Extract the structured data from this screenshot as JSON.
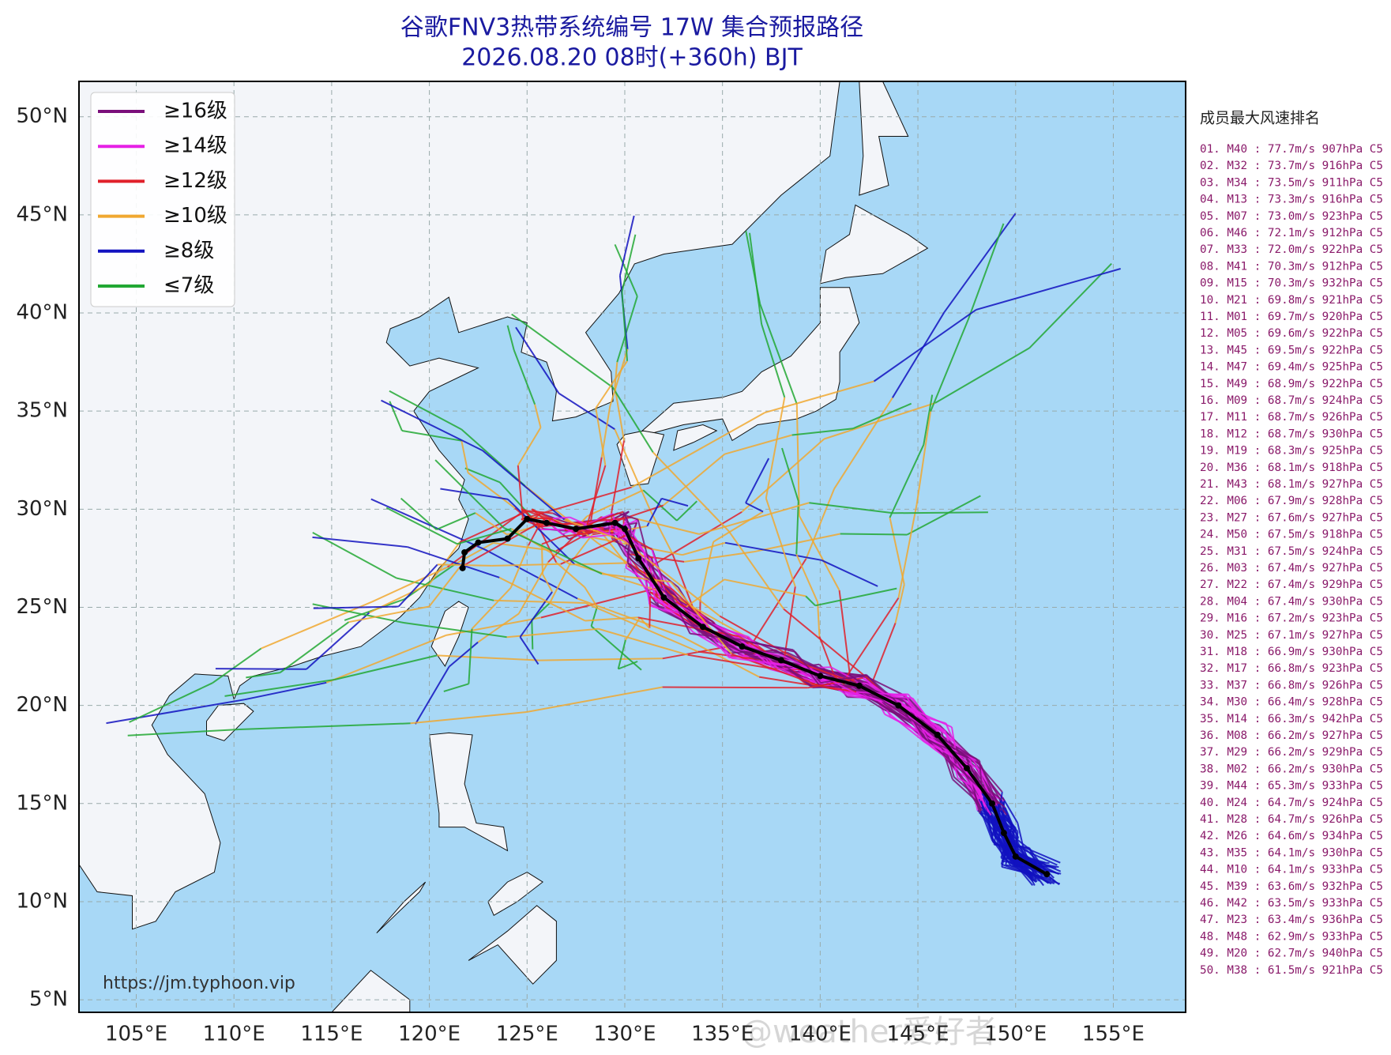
{
  "title": "谷歌FNV3热带系统编号 17W 集合预报路径",
  "subtitle": "2026.08.20 08时(+360h) BJT",
  "map": {
    "xlim": [
      102.07,
      158.7
    ],
    "ylim": [
      4.36,
      51.8
    ],
    "xticks": [
      {
        "value": 105,
        "label": "105°E"
      },
      {
        "value": 110,
        "label": "110°E"
      },
      {
        "value": 115,
        "label": "115°E"
      },
      {
        "value": 120,
        "label": "120°E"
      },
      {
        "value": 125,
        "label": "125°E"
      },
      {
        "value": 130,
        "label": "130°E"
      },
      {
        "value": 135,
        "label": "135°E"
      },
      {
        "value": 140,
        "label": "140°E"
      },
      {
        "value": 145,
        "label": "145°E"
      },
      {
        "value": 150,
        "label": "150°E"
      },
      {
        "value": 155,
        "label": "155°E"
      }
    ],
    "yticks": [
      {
        "value": 5,
        "label": "5°N"
      },
      {
        "value": 10,
        "label": "10°N"
      },
      {
        "value": 15,
        "label": "15°N"
      },
      {
        "value": 20,
        "label": "20°N"
      },
      {
        "value": 25,
        "label": "25°N"
      },
      {
        "value": 30,
        "label": "30°N"
      },
      {
        "value": 35,
        "label": "35°N"
      },
      {
        "value": 40,
        "label": "40°N"
      },
      {
        "value": 45,
        "label": "45°N"
      },
      {
        "value": 50,
        "label": "50°N"
      }
    ],
    "grid": true
  },
  "legend": [
    {
      "name": "≥16级",
      "color": "#7a0f7a"
    },
    {
      "name": "≥14级",
      "color": "#e620e6"
    },
    {
      "name": "≥12级",
      "color": "#e0202a"
    },
    {
      "name": "≥10级",
      "color": "#f0a830"
    },
    {
      "name": "≥8级",
      "color": "#1212c0"
    },
    {
      "name": "≤7级",
      "color": "#22a834"
    }
  ],
  "ranking": {
    "title": "成员最大风速排名",
    "items": [
      "01. M40 : 77.7m/s 907hPa C5",
      "02. M32 : 73.7m/s 916hPa C5",
      "03. M34 : 73.5m/s 911hPa C5",
      "04. M13 : 73.3m/s 916hPa C5",
      "05. M07 : 73.0m/s 923hPa C5",
      "06. M46 : 72.1m/s 912hPa C5",
      "07. M33 : 72.0m/s 922hPa C5",
      "08. M41 : 70.3m/s 912hPa C5",
      "09. M15 : 70.3m/s 932hPa C5",
      "10. M21 : 69.8m/s 921hPa C5",
      "11. M01 : 69.7m/s 920hPa C5",
      "12. M05 : 69.6m/s 922hPa C5",
      "13. M45 : 69.5m/s 922hPa C5",
      "14. M47 : 69.4m/s 925hPa C5",
      "15. M49 : 68.9m/s 922hPa C5",
      "16. M09 : 68.7m/s 924hPa C5",
      "17. M11 : 68.7m/s 926hPa C5",
      "18. M12 : 68.7m/s 930hPa C5",
      "19. M19 : 68.3m/s 925hPa C5",
      "20. M36 : 68.1m/s 918hPa C5",
      "21. M43 : 68.1m/s 927hPa C5",
      "22. M06 : 67.9m/s 928hPa C5",
      "23. M27 : 67.6m/s 927hPa C5",
      "24. M50 : 67.5m/s 918hPa C5",
      "25. M31 : 67.5m/s 924hPa C5",
      "26. M03 : 67.4m/s 927hPa C5",
      "27. M22 : 67.4m/s 929hPa C5",
      "28. M04 : 67.4m/s 930hPa C5",
      "29. M16 : 67.2m/s 923hPa C5",
      "30. M25 : 67.1m/s 927hPa C5",
      "31. M18 : 66.9m/s 930hPa C5",
      "32. M17 : 66.8m/s 923hPa C5",
      "33. M37 : 66.8m/s 926hPa C5",
      "34. M30 : 66.4m/s 928hPa C5",
      "35. M14 : 66.3m/s 942hPa C5",
      "36. M08 : 66.2m/s 927hPa C5",
      "37. M29 : 66.2m/s 929hPa C5",
      "38. M02 : 66.2m/s 930hPa C5",
      "39. M44 : 65.3m/s 933hPa C5",
      "40. M24 : 64.7m/s 924hPa C5",
      "41. M28 : 64.7m/s 926hPa C5",
      "42. M26 : 64.6m/s 934hPa C5",
      "43. M35 : 64.1m/s 930hPa C5",
      "44. M10 : 64.1m/s 933hPa C5",
      "45. M39 : 63.6m/s 932hPa C5",
      "46. M42 : 63.5m/s 933hPa C5",
      "47. M23 : 63.4m/s 936hPa C5",
      "48. M48 : 62.9m/s 933hPa C5",
      "49. M20 : 62.7m/s 940hPa C5",
      "50. M38 : 61.5m/s 921hPa C5"
    ]
  },
  "source_url": "https://jm.typhoon.vip",
  "watermark": "@weather爱好者"
}
